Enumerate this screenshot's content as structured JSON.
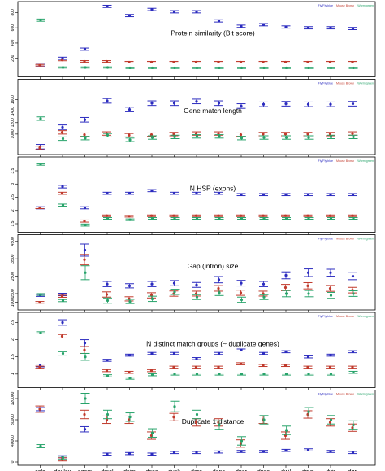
{
  "categories": [
    "cele",
    "dpulex",
    "agam",
    "dmel",
    "dsim",
    "dsec",
    "dyak",
    "dere",
    "dana",
    "dper",
    "dpse",
    "dwil",
    "dmoj",
    "dvir",
    "dgri"
  ],
  "legend": [
    {
      "label": "Fly/Fly blue",
      "color": "#2b2bbf"
    },
    {
      "label": "Mouse Brown",
      "color": "#c0392b"
    },
    {
      "label": "Worm green",
      "color": "#27a36a"
    }
  ],
  "chart_data": [
    {
      "type": "scatter",
      "title": "Protein similarity (Bit score)",
      "ylim": [
        0,
        900
      ],
      "yticks": [
        200,
        400,
        600,
        800
      ],
      "series": [
        {
          "key": "fly",
          "values": [
            110,
            200,
            320,
            880,
            760,
            840,
            810,
            810,
            690,
            620,
            640,
            610,
            600,
            600,
            590
          ],
          "err": [
            12,
            15,
            15,
            15,
            15,
            15,
            15,
            15,
            15,
            15,
            15,
            15,
            15,
            15,
            15
          ]
        },
        {
          "key": "mouse",
          "values": [
            110,
            180,
            160,
            160,
            150,
            150,
            150,
            150,
            150,
            150,
            150,
            150,
            150,
            150,
            150
          ],
          "err": [
            10,
            12,
            10,
            10,
            10,
            10,
            10,
            10,
            10,
            10,
            10,
            10,
            10,
            10,
            10
          ]
        },
        {
          "key": "worm",
          "values": [
            700,
            80,
            80,
            80,
            75,
            75,
            75,
            75,
            75,
            75,
            75,
            75,
            75,
            75,
            75
          ],
          "err": [
            15,
            8,
            8,
            8,
            8,
            8,
            8,
            8,
            8,
            8,
            8,
            8,
            8,
            8,
            8
          ]
        }
      ]
    },
    {
      "type": "scatter",
      "title": "Gene match length",
      "ylim": [
        700,
        1900
      ],
      "yticks": [
        1000,
        1200,
        1400,
        1600
      ],
      "series": [
        {
          "key": "fly",
          "values": [
            780,
            1120,
            1250,
            1580,
            1430,
            1540,
            1540,
            1570,
            1540,
            1490,
            1520,
            1530,
            1520,
            1520,
            1530
          ],
          "err": [
            40,
            40,
            40,
            40,
            40,
            40,
            40,
            40,
            40,
            40,
            40,
            40,
            40,
            40,
            40
          ]
        },
        {
          "key": "mouse",
          "values": [
            760,
            1030,
            990,
            1010,
            980,
            990,
            1000,
            1010,
            1010,
            990,
            1000,
            1000,
            1000,
            1000,
            1010
          ],
          "err": [
            30,
            30,
            30,
            30,
            30,
            30,
            30,
            30,
            30,
            30,
            30,
            30,
            30,
            30,
            30
          ]
        },
        {
          "key": "worm",
          "values": [
            1270,
            920,
            930,
            980,
            900,
            940,
            950,
            960,
            960,
            930,
            940,
            940,
            940,
            950,
            950
          ],
          "err": [
            30,
            30,
            30,
            30,
            30,
            30,
            30,
            30,
            30,
            30,
            30,
            30,
            30,
            30,
            30
          ]
        }
      ]
    },
    {
      "type": "scatter",
      "title": "N HSP (exons)",
      "ylim": [
        1.3,
        3.9
      ],
      "yticks": [
        1.5,
        2.0,
        2.5,
        3.0,
        3.5
      ],
      "series": [
        {
          "key": "fly",
          "values": [
            2.1,
            2.9,
            2.1,
            2.65,
            2.65,
            2.75,
            2.65,
            2.65,
            2.65,
            2.6,
            2.6,
            2.6,
            2.6,
            2.6,
            2.6
          ],
          "err": [
            0.04,
            0.05,
            0.04,
            0.04,
            0.04,
            0.04,
            0.04,
            0.04,
            0.04,
            0.04,
            0.04,
            0.04,
            0.04,
            0.04,
            0.04
          ]
        },
        {
          "key": "mouse",
          "values": [
            2.1,
            2.65,
            1.6,
            1.8,
            1.78,
            1.8,
            1.8,
            1.8,
            1.8,
            1.8,
            1.8,
            1.8,
            1.8,
            1.8,
            1.8
          ],
          "err": [
            0.03,
            0.04,
            0.04,
            0.03,
            0.03,
            0.03,
            0.03,
            0.03,
            0.03,
            0.03,
            0.03,
            0.03,
            0.03,
            0.03,
            0.03
          ]
        },
        {
          "key": "worm",
          "values": [
            3.75,
            2.2,
            1.45,
            1.7,
            1.65,
            1.7,
            1.7,
            1.7,
            1.7,
            1.7,
            1.7,
            1.7,
            1.7,
            1.7,
            1.7
          ],
          "err": [
            0.04,
            0.04,
            0.04,
            0.03,
            0.03,
            0.03,
            0.03,
            0.03,
            0.03,
            0.03,
            0.03,
            0.03,
            0.03,
            0.03,
            0.03
          ]
        }
      ]
    },
    {
      "type": "scatter",
      "title": "Gap (intron) size",
      "ylim": [
        750,
        4700
      ],
      "yticks": [
        1000,
        1500,
        2500,
        3500,
        4500
      ],
      "series": [
        {
          "key": "fly",
          "values": [
            1400,
            1450,
            4000,
            2050,
            1950,
            2050,
            2100,
            2000,
            2300,
            2100,
            2050,
            2550,
            2700,
            2700,
            2500
          ],
          "err": [
            60,
            70,
            350,
            150,
            120,
            150,
            150,
            140,
            180,
            160,
            150,
            200,
            220,
            200,
            200
          ]
        },
        {
          "key": "mouse",
          "values": [
            1000,
            1350,
            3450,
            1450,
            1200,
            1400,
            1500,
            1500,
            1800,
            1550,
            1500,
            1850,
            1950,
            1800,
            1700
          ],
          "err": [
            50,
            60,
            300,
            150,
            120,
            150,
            150,
            140,
            160,
            150,
            140,
            180,
            180,
            170,
            160
          ]
        },
        {
          "key": "worm",
          "values": [
            1450,
            1100,
            2700,
            1100,
            1050,
            1200,
            1600,
            1300,
            1550,
            1150,
            1300,
            1500,
            1500,
            1400,
            1500
          ],
          "err": [
            50,
            60,
            400,
            150,
            120,
            150,
            150,
            140,
            160,
            150,
            140,
            180,
            180,
            170,
            160
          ]
        }
      ]
    },
    {
      "type": "scatter",
      "title": "N distinct match groups (~ duplicate genes)",
      "ylim": [
        0.7,
        2.7
      ],
      "yticks": [
        1.0,
        1.5,
        2.0,
        2.5
      ],
      "series": [
        {
          "key": "fly",
          "values": [
            1.25,
            2.5,
            1.9,
            1.4,
            1.55,
            1.6,
            1.6,
            1.45,
            1.6,
            1.7,
            1.6,
            1.65,
            1.5,
            1.55,
            1.65
          ],
          "err": [
            0.04,
            0.08,
            0.1,
            0.03,
            0.03,
            0.03,
            0.03,
            0.03,
            0.03,
            0.03,
            0.03,
            0.03,
            0.03,
            0.03,
            0.03
          ]
        },
        {
          "key": "mouse",
          "values": [
            1.2,
            2.1,
            1.7,
            1.1,
            1.05,
            1.1,
            1.2,
            1.2,
            1.2,
            1.3,
            1.25,
            1.25,
            1.2,
            1.2,
            1.2
          ],
          "err": [
            0.03,
            0.05,
            0.1,
            0.03,
            0.03,
            0.03,
            0.03,
            0.03,
            0.03,
            0.03,
            0.03,
            0.03,
            0.03,
            0.03,
            0.03
          ]
        },
        {
          "key": "worm",
          "values": [
            2.2,
            1.6,
            1.5,
            0.95,
            0.88,
            0.98,
            1.0,
            1.0,
            1.0,
            1.0,
            1.0,
            1.0,
            1.0,
            1.0,
            1.05
          ],
          "err": [
            0.03,
            0.05,
            0.1,
            0.03,
            0.03,
            0.03,
            0.03,
            0.03,
            0.03,
            0.03,
            0.03,
            0.03,
            0.03,
            0.03,
            0.03
          ]
        }
      ]
    },
    {
      "type": "scatter",
      "title": "Duplicate 1 distance",
      "ylim": [
        0,
        130000
      ],
      "yticks": [
        0,
        40000,
        80000,
        120000
      ],
      "series": [
        {
          "key": "fly",
          "values": [
            100000,
            10000,
            62000,
            15000,
            16000,
            15000,
            18000,
            18000,
            19000,
            20000,
            20000,
            22000,
            23000,
            20000,
            18000
          ],
          "err": [
            3000,
            2000,
            5000,
            2000,
            2000,
            2000,
            2000,
            2000,
            2000,
            2000,
            2000,
            2000,
            2000,
            2000,
            2000
          ]
        },
        {
          "key": "mouse",
          "values": [
            100000,
            5000,
            90000,
            80000,
            80000,
            50000,
            85000,
            75000,
            75000,
            35000,
            80000,
            50000,
            90000,
            75000,
            65000
          ],
          "err": [
            6000,
            3000,
            8000,
            7000,
            7000,
            7000,
            7000,
            7000,
            7000,
            7000,
            7000,
            7000,
            7000,
            7000,
            7000
          ]
        },
        {
          "key": "worm",
          "values": [
            30000,
            8000,
            120000,
            90000,
            85000,
            55000,
            105000,
            90000,
            70000,
            40000,
            80000,
            60000,
            95000,
            80000,
            70000
          ],
          "err": [
            3000,
            3000,
            10000,
            8000,
            8000,
            8000,
            10000,
            8000,
            8000,
            8000,
            8000,
            8000,
            8000,
            8000,
            8000
          ]
        }
      ]
    }
  ]
}
